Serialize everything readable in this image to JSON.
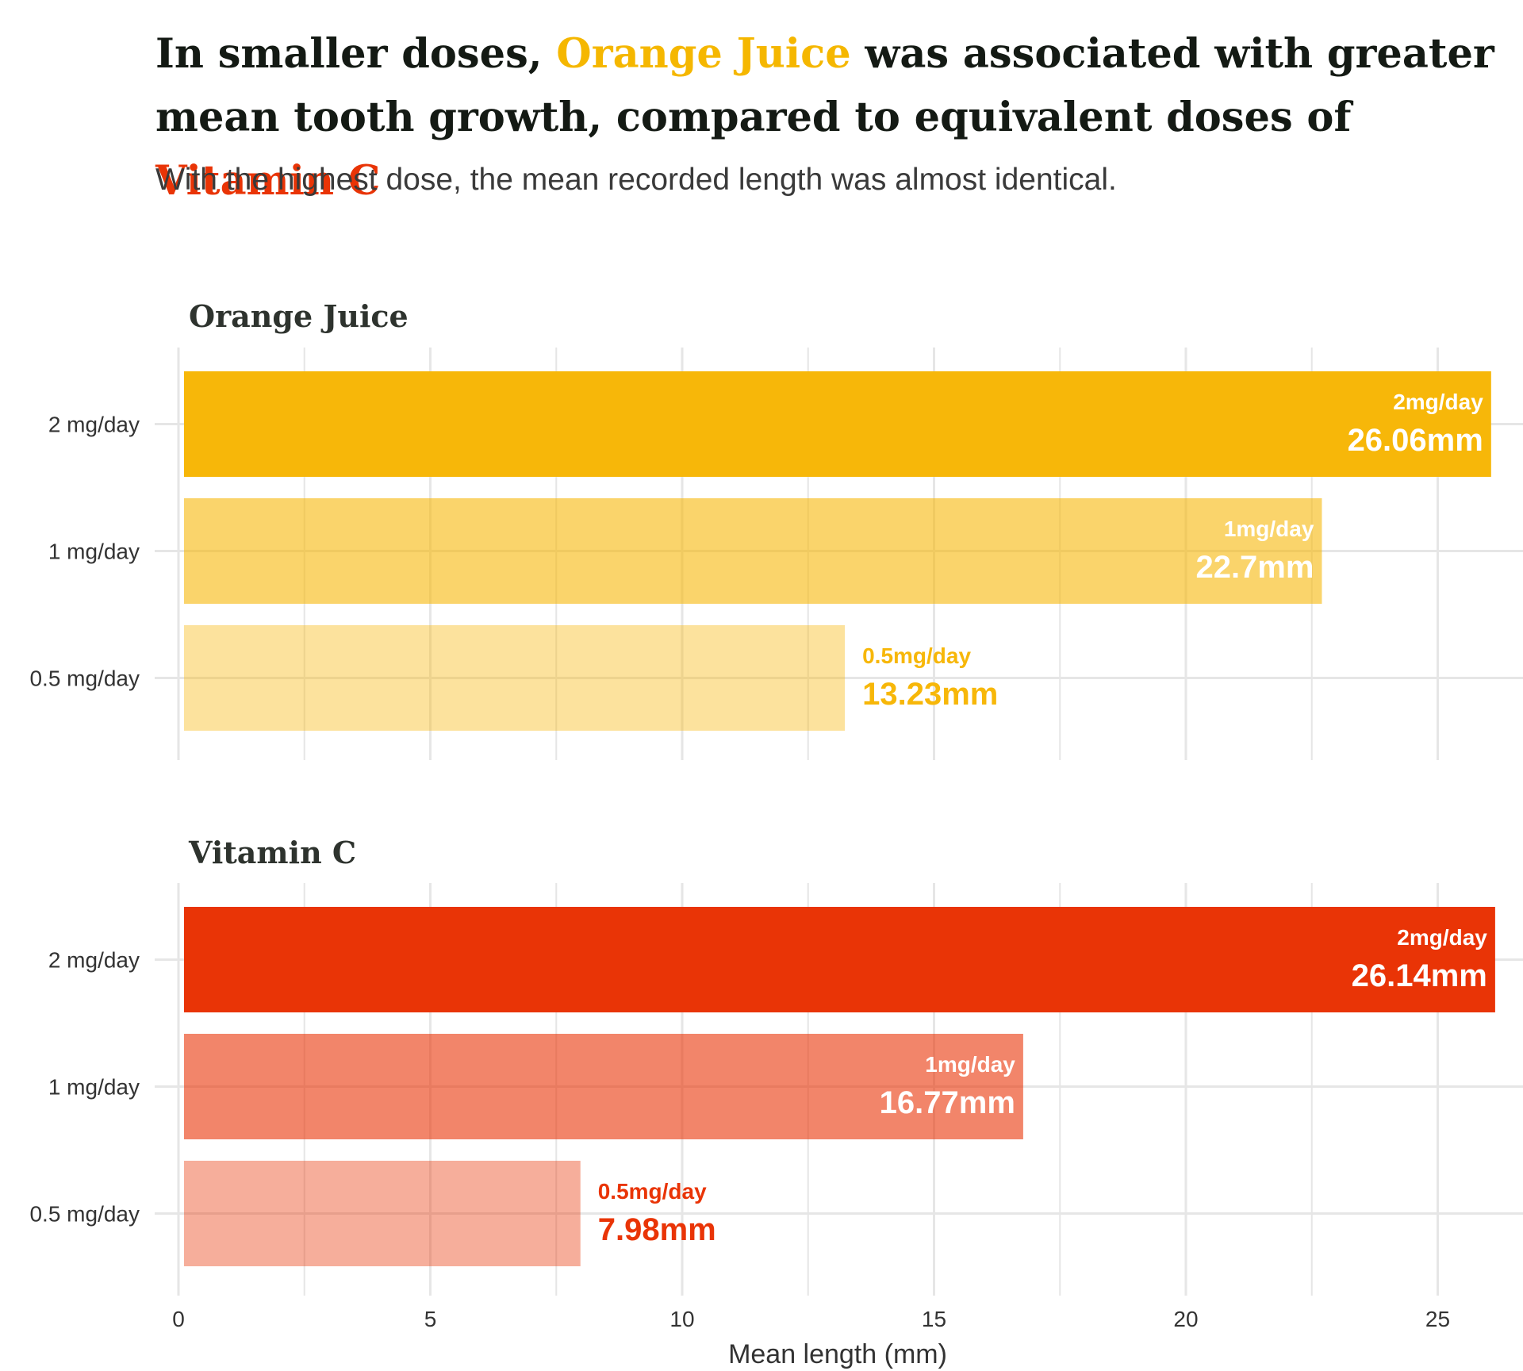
{
  "title": {
    "part1": "In smaller doses, ",
    "highlight1": "Orange Juice",
    "part2": " was associated with greater mean tooth growth, compared to equivalent doses of ",
    "highlight2": "Vitamin C"
  },
  "subtitle": "With the highest dose, the mean recorded length was almost identical.",
  "colors": {
    "orange_juice": "#f7b709",
    "vitamin_c": "#e93406",
    "grid": "#e6e6e6",
    "text": "#333333"
  },
  "chart_data": {
    "type": "bar",
    "orientation": "horizontal",
    "xlabel": "Mean length (mm)",
    "xlim": [
      0,
      26.5
    ],
    "xticks": [
      0,
      5,
      10,
      15,
      20,
      25
    ],
    "categories": [
      "2 mg/day",
      "1 mg/day",
      "0.5 mg/day"
    ],
    "grid": true,
    "panels": [
      {
        "name": "Orange Juice",
        "color": "#f7b709",
        "bars": [
          {
            "category": "2 mg/day",
            "value": 26.06,
            "dose_label": "2mg/day",
            "value_label": "26.06mm",
            "opacity": 1.0
          },
          {
            "category": "1 mg/day",
            "value": 22.7,
            "dose_label": "1mg/day",
            "value_label": "22.7mm",
            "opacity": 0.6
          },
          {
            "category": "0.5 mg/day",
            "value": 13.23,
            "dose_label": "0.5mg/day",
            "value_label": "13.23mm",
            "opacity": 0.4
          }
        ]
      },
      {
        "name": "Vitamin C",
        "color": "#e93406",
        "bars": [
          {
            "category": "2 mg/day",
            "value": 26.14,
            "dose_label": "2mg/day",
            "value_label": "26.14mm",
            "opacity": 1.0
          },
          {
            "category": "1 mg/day",
            "value": 16.77,
            "dose_label": "1mg/day",
            "value_label": "16.77mm",
            "opacity": 0.6
          },
          {
            "category": "0.5 mg/day",
            "value": 7.98,
            "dose_label": "0.5mg/day",
            "value_label": "7.98mm",
            "opacity": 0.4
          }
        ]
      }
    ]
  }
}
